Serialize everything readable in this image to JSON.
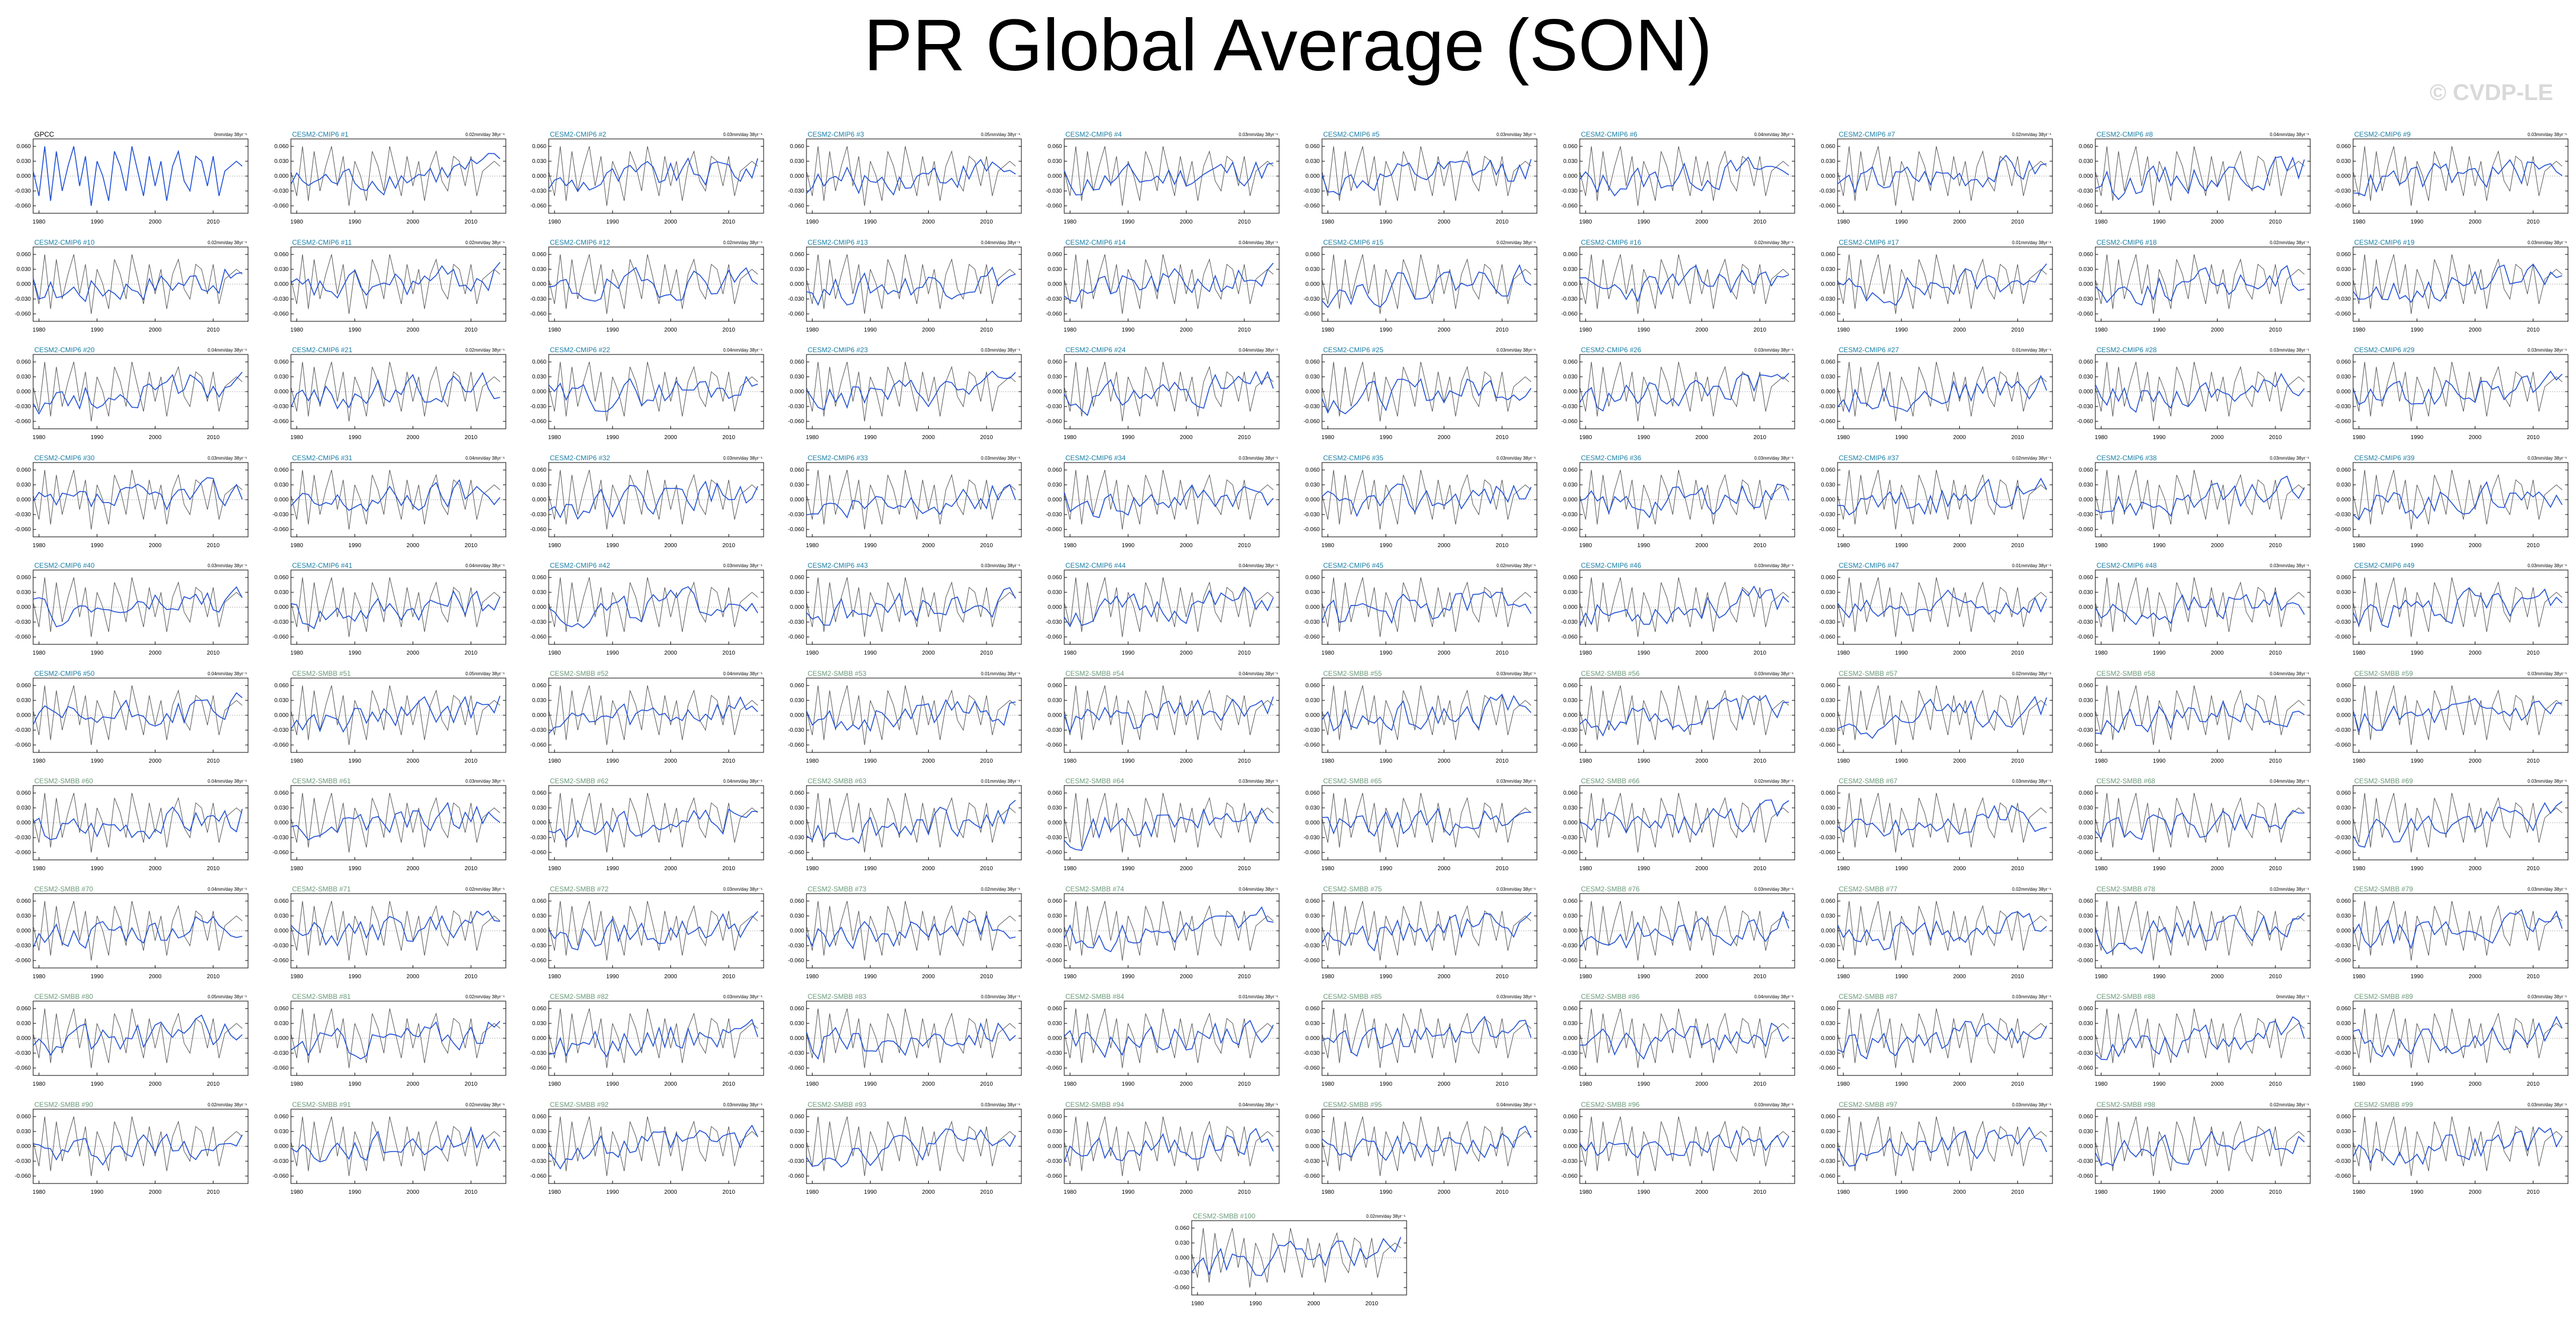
{
  "title": "PR Global Average (SON)",
  "watermark": "© CVDP-LE",
  "colors": {
    "obs_line": "#000000",
    "model_line": "#1f4fd6",
    "cmip6_title": "#1a7fa6",
    "smbb_title": "#6b9a7a",
    "obs_title": "#000000",
    "zero_line": "#999999"
  },
  "chart_data": {
    "type": "line",
    "layout": "small-multiples grid, 10 columns x 10 rows plus 1 centered panel",
    "x_ticks": [
      1980,
      1990,
      2000,
      2010
    ],
    "xlim": [
      1979,
      2016
    ],
    "y_ticks": [
      -0.06,
      -0.03,
      0.0,
      0.03,
      0.06
    ],
    "y_tick_labels": [
      "-0.060",
      "-0.030",
      "0.000",
      "0.030",
      "0.060"
    ],
    "ylim": [
      -0.075,
      0.075
    ],
    "obs_series": "GPCC",
    "obs_values": [
      0.01,
      -0.04,
      0.06,
      -0.05,
      0.05,
      -0.03,
      0.02,
      0.06,
      -0.02,
      0.04,
      -0.06,
      0.03,
      0.0,
      -0.05,
      0.05,
      0.02,
      -0.03,
      0.06,
      0.01,
      -0.04,
      0.04,
      -0.02,
      0.03,
      -0.05,
      0.02,
      0.05,
      -0.01,
      -0.03,
      0.04,
      0.03,
      -0.02,
      0.04,
      -0.04,
      0.01,
      0.02,
      0.03,
      0.02
    ],
    "panels": [
      {
        "title": "GPCC",
        "group": "obs",
        "trend": "0mm/day 38yr⁻¹"
      },
      {
        "title": "CESM2-CMIP6 #1",
        "group": "cmip6",
        "trend": "0.02mm/day 38yr⁻¹"
      },
      {
        "title": "CESM2-CMIP6 #2",
        "group": "cmip6",
        "trend": "0.03mm/day 38yr⁻¹"
      },
      {
        "title": "CESM2-CMIP6 #3",
        "group": "cmip6",
        "trend": "0.05mm/day 38yr⁻¹"
      },
      {
        "title": "CESM2-CMIP6 #4",
        "group": "cmip6",
        "trend": "0.03mm/day 38yr⁻¹"
      },
      {
        "title": "CESM2-CMIP6 #5",
        "group": "cmip6",
        "trend": "0.03mm/day 38yr⁻¹"
      },
      {
        "title": "CESM2-CMIP6 #6",
        "group": "cmip6",
        "trend": "0.04mm/day 38yr⁻¹"
      },
      {
        "title": "CESM2-CMIP6 #7",
        "group": "cmip6",
        "trend": "0.02mm/day 38yr⁻¹"
      },
      {
        "title": "CESM2-CMIP6 #8",
        "group": "cmip6",
        "trend": "0.04mm/day 38yr⁻¹"
      },
      {
        "title": "CESM2-CMIP6 #9",
        "group": "cmip6",
        "trend": "0.03mm/day 38yr⁻¹"
      },
      {
        "title": "CESM2-CMIP6 #10",
        "group": "cmip6",
        "trend": "0.02mm/day 38yr⁻¹"
      },
      {
        "title": "CESM2-CMIP6 #11",
        "group": "cmip6",
        "trend": "0.02mm/day 38yr⁻¹"
      },
      {
        "title": "CESM2-CMIP6 #12",
        "group": "cmip6",
        "trend": "0.02mm/day 38yr⁻¹"
      },
      {
        "title": "CESM2-CMIP6 #13",
        "group": "cmip6",
        "trend": "0.04mm/day 38yr⁻¹"
      },
      {
        "title": "CESM2-CMIP6 #14",
        "group": "cmip6",
        "trend": "0.04mm/day 38yr⁻¹"
      },
      {
        "title": "CESM2-CMIP6 #15",
        "group": "cmip6",
        "trend": "0.02mm/day 38yr⁻¹"
      },
      {
        "title": "CESM2-CMIP6 #16",
        "group": "cmip6",
        "trend": "0.02mm/day 38yr⁻¹"
      },
      {
        "title": "CESM2-CMIP6 #17",
        "group": "cmip6",
        "trend": "0.01mm/day 38yr⁻¹"
      },
      {
        "title": "CESM2-CMIP6 #18",
        "group": "cmip6",
        "trend": "0.02mm/day 38yr⁻¹"
      },
      {
        "title": "CESM2-CMIP6 #19",
        "group": "cmip6",
        "trend": "0.03mm/day 38yr⁻¹"
      },
      {
        "title": "CESM2-CMIP6 #20",
        "group": "cmip6",
        "trend": "0.04mm/day 38yr⁻¹"
      },
      {
        "title": "CESM2-CMIP6 #21",
        "group": "cmip6",
        "trend": "0.02mm/day 38yr⁻¹"
      },
      {
        "title": "CESM2-CMIP6 #22",
        "group": "cmip6",
        "trend": "0.04mm/day 38yr⁻¹"
      },
      {
        "title": "CESM2-CMIP6 #23",
        "group": "cmip6",
        "trend": "0.03mm/day 38yr⁻¹"
      },
      {
        "title": "CESM2-CMIP6 #24",
        "group": "cmip6",
        "trend": "0.04mm/day 38yr⁻¹"
      },
      {
        "title": "CESM2-CMIP6 #25",
        "group": "cmip6",
        "trend": "0.03mm/day 38yr⁻¹"
      },
      {
        "title": "CESM2-CMIP6 #26",
        "group": "cmip6",
        "trend": "0.03mm/day 38yr⁻¹"
      },
      {
        "title": "CESM2-CMIP6 #27",
        "group": "cmip6",
        "trend": "0.01mm/day 38yr⁻¹"
      },
      {
        "title": "CESM2-CMIP6 #28",
        "group": "cmip6",
        "trend": "0.03mm/day 38yr⁻¹"
      },
      {
        "title": "CESM2-CMIP6 #29",
        "group": "cmip6",
        "trend": "0.03mm/day 38yr⁻¹"
      },
      {
        "title": "CESM2-CMIP6 #30",
        "group": "cmip6",
        "trend": "0.03mm/day 38yr⁻¹"
      },
      {
        "title": "CESM2-CMIP6 #31",
        "group": "cmip6",
        "trend": "0.04mm/day 38yr⁻¹"
      },
      {
        "title": "CESM2-CMIP6 #32",
        "group": "cmip6",
        "trend": "0.03mm/day 38yr⁻¹"
      },
      {
        "title": "CESM2-CMIP6 #33",
        "group": "cmip6",
        "trend": "0.03mm/day 38yr⁻¹"
      },
      {
        "title": "CESM2-CMIP6 #34",
        "group": "cmip6",
        "trend": "0.03mm/day 38yr⁻¹"
      },
      {
        "title": "CESM2-CMIP6 #35",
        "group": "cmip6",
        "trend": "0.03mm/day 38yr⁻¹"
      },
      {
        "title": "CESM2-CMIP6 #36",
        "group": "cmip6",
        "trend": "0.03mm/day 38yr⁻¹"
      },
      {
        "title": "CESM2-CMIP6 #37",
        "group": "cmip6",
        "trend": "0.02mm/day 38yr⁻¹"
      },
      {
        "title": "CESM2-CMIP6 #38",
        "group": "cmip6",
        "trend": "0.03mm/day 38yr⁻¹"
      },
      {
        "title": "CESM2-CMIP6 #39",
        "group": "cmip6",
        "trend": "0.03mm/day 38yr⁻¹"
      },
      {
        "title": "CESM2-CMIP6 #40",
        "group": "cmip6",
        "trend": "0.03mm/day 38yr⁻¹"
      },
      {
        "title": "CESM2-CMIP6 #41",
        "group": "cmip6",
        "trend": "0.04mm/day 38yr⁻¹"
      },
      {
        "title": "CESM2-CMIP6 #42",
        "group": "cmip6",
        "trend": "0.03mm/day 38yr⁻¹"
      },
      {
        "title": "CESM2-CMIP6 #43",
        "group": "cmip6",
        "trend": "0.03mm/day 38yr⁻¹"
      },
      {
        "title": "CESM2-CMIP6 #44",
        "group": "cmip6",
        "trend": "0.04mm/day 38yr⁻¹"
      },
      {
        "title": "CESM2-CMIP6 #45",
        "group": "cmip6",
        "trend": "0.02mm/day 38yr⁻¹"
      },
      {
        "title": "CESM2-CMIP6 #46",
        "group": "cmip6",
        "trend": "0.03mm/day 38yr⁻¹"
      },
      {
        "title": "CESM2-CMIP6 #47",
        "group": "cmip6",
        "trend": "0.01mm/day 38yr⁻¹"
      },
      {
        "title": "CESM2-CMIP6 #48",
        "group": "cmip6",
        "trend": "0.03mm/day 38yr⁻¹"
      },
      {
        "title": "CESM2-CMIP6 #49",
        "group": "cmip6",
        "trend": "0.03mm/day 38yr⁻¹"
      },
      {
        "title": "CESM2-CMIP6 #50",
        "group": "cmip6",
        "trend": "0.04mm/day 38yr⁻¹"
      },
      {
        "title": "CESM2-SMBB #51",
        "group": "smbb",
        "trend": "0.05mm/day 38yr⁻¹"
      },
      {
        "title": "CESM2-SMBB #52",
        "group": "smbb",
        "trend": "0.04mm/day 38yr⁻¹"
      },
      {
        "title": "CESM2-SMBB #53",
        "group": "smbb",
        "trend": "0.01mm/day 38yr⁻¹"
      },
      {
        "title": "CESM2-SMBB #54",
        "group": "smbb",
        "trend": "0.04mm/day 38yr⁻¹"
      },
      {
        "title": "CESM2-SMBB #55",
        "group": "smbb",
        "trend": "0.03mm/day 38yr⁻¹"
      },
      {
        "title": "CESM2-SMBB #56",
        "group": "smbb",
        "trend": "0.03mm/day 38yr⁻¹"
      },
      {
        "title": "CESM2-SMBB #57",
        "group": "smbb",
        "trend": "0.02mm/day 38yr⁻¹"
      },
      {
        "title": "CESM2-SMBB #58",
        "group": "smbb",
        "trend": "0.04mm/day 38yr⁻¹"
      },
      {
        "title": "CESM2-SMBB #59",
        "group": "smbb",
        "trend": "0.03mm/day 38yr⁻¹"
      },
      {
        "title": "CESM2-SMBB #60",
        "group": "smbb",
        "trend": "0.04mm/day 38yr⁻¹"
      },
      {
        "title": "CESM2-SMBB #61",
        "group": "smbb",
        "trend": "0.03mm/day 38yr⁻¹"
      },
      {
        "title": "CESM2-SMBB #62",
        "group": "smbb",
        "trend": "0.04mm/day 38yr⁻¹"
      },
      {
        "title": "CESM2-SMBB #63",
        "group": "smbb",
        "trend": "0.01mm/day 38yr⁻¹"
      },
      {
        "title": "CESM2-SMBB #64",
        "group": "smbb",
        "trend": "0.03mm/day 38yr⁻¹"
      },
      {
        "title": "CESM2-SMBB #65",
        "group": "smbb",
        "trend": "0.03mm/day 38yr⁻¹"
      },
      {
        "title": "CESM2-SMBB #66",
        "group": "smbb",
        "trend": "0.02mm/day 38yr⁻¹"
      },
      {
        "title": "CESM2-SMBB #67",
        "group": "smbb",
        "trend": "0.03mm/day 38yr⁻¹"
      },
      {
        "title": "CESM2-SMBB #68",
        "group": "smbb",
        "trend": "0.04mm/day 38yr⁻¹"
      },
      {
        "title": "CESM2-SMBB #69",
        "group": "smbb",
        "trend": "0.03mm/day 38yr⁻¹"
      },
      {
        "title": "CESM2-SMBB #70",
        "group": "smbb",
        "trend": "0.04mm/day 38yr⁻¹"
      },
      {
        "title": "CESM2-SMBB #71",
        "group": "smbb",
        "trend": "0.02mm/day 38yr⁻¹"
      },
      {
        "title": "CESM2-SMBB #72",
        "group": "smbb",
        "trend": "0.03mm/day 38yr⁻¹"
      },
      {
        "title": "CESM2-SMBB #73",
        "group": "smbb",
        "trend": "0.02mm/day 38yr⁻¹"
      },
      {
        "title": "CESM2-SMBB #74",
        "group": "smbb",
        "trend": "0.04mm/day 38yr⁻¹"
      },
      {
        "title": "CESM2-SMBB #75",
        "group": "smbb",
        "trend": "0.03mm/day 38yr⁻¹"
      },
      {
        "title": "CESM2-SMBB #76",
        "group": "smbb",
        "trend": "0.03mm/day 38yr⁻¹"
      },
      {
        "title": "CESM2-SMBB #77",
        "group": "smbb",
        "trend": "0.02mm/day 38yr⁻¹"
      },
      {
        "title": "CESM2-SMBB #78",
        "group": "smbb",
        "trend": "0.02mm/day 38yr⁻¹"
      },
      {
        "title": "CESM2-SMBB #79",
        "group": "smbb",
        "trend": "0.03mm/day 38yr⁻¹"
      },
      {
        "title": "CESM2-SMBB #80",
        "group": "smbb",
        "trend": "0.05mm/day 38yr⁻¹"
      },
      {
        "title": "CESM2-SMBB #81",
        "group": "smbb",
        "trend": "0.02mm/day 38yr⁻¹"
      },
      {
        "title": "CESM2-SMBB #82",
        "group": "smbb",
        "trend": "0.03mm/day 38yr⁻¹"
      },
      {
        "title": "CESM2-SMBB #83",
        "group": "smbb",
        "trend": "0.03mm/day 38yr⁻¹"
      },
      {
        "title": "CESM2-SMBB #84",
        "group": "smbb",
        "trend": "0.01mm/day 38yr⁻¹"
      },
      {
        "title": "CESM2-SMBB #85",
        "group": "smbb",
        "trend": "0.03mm/day 38yr⁻¹"
      },
      {
        "title": "CESM2-SMBB #86",
        "group": "smbb",
        "trend": "0.04mm/day 38yr⁻¹"
      },
      {
        "title": "CESM2-SMBB #87",
        "group": "smbb",
        "trend": "0.03mm/day 38yr⁻¹"
      },
      {
        "title": "CESM2-SMBB #88",
        "group": "smbb",
        "trend": "0mm/day 38yr⁻¹"
      },
      {
        "title": "CESM2-SMBB #89",
        "group": "smbb",
        "trend": "0.03mm/day 38yr⁻¹"
      },
      {
        "title": "CESM2-SMBB #90",
        "group": "smbb",
        "trend": "0.02mm/day 38yr⁻¹"
      },
      {
        "title": "CESM2-SMBB #91",
        "group": "smbb",
        "trend": "0.02mm/day 38yr⁻¹"
      },
      {
        "title": "CESM2-SMBB #92",
        "group": "smbb",
        "trend": "0.03mm/day 38yr⁻¹"
      },
      {
        "title": "CESM2-SMBB #93",
        "group": "smbb",
        "trend": "0.03mm/day 38yr⁻¹"
      },
      {
        "title": "CESM2-SMBB #94",
        "group": "smbb",
        "trend": "0.04mm/day 38yr⁻¹"
      },
      {
        "title": "CESM2-SMBB #95",
        "group": "smbb",
        "trend": "0.04mm/day 38yr⁻¹"
      },
      {
        "title": "CESM2-SMBB #96",
        "group": "smbb",
        "trend": "0.03mm/day 38yr⁻¹"
      },
      {
        "title": "CESM2-SMBB #97",
        "group": "smbb",
        "trend": "0.03mm/day 38yr⁻¹"
      },
      {
        "title": "CESM2-SMBB #98",
        "group": "smbb",
        "trend": "0.02mm/day 38yr⁻¹"
      },
      {
        "title": "CESM2-SMBB #99",
        "group": "smbb",
        "trend": "0.03mm/day 38yr⁻¹"
      },
      {
        "title": "CESM2-SMBB #100",
        "group": "smbb",
        "trend": "0.02mm/day 38yr⁻¹"
      }
    ]
  }
}
